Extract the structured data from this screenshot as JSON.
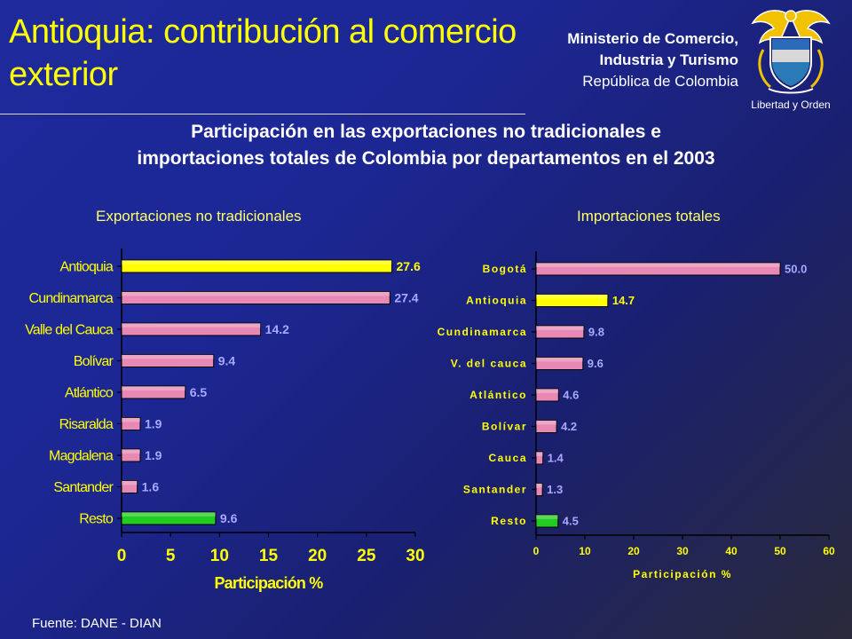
{
  "header": {
    "title": "Antioquia: contribución al comercio exterior",
    "ministry_line1": "Ministerio de Comercio,",
    "ministry_line2": "Industria y Turismo",
    "ministry_line3": "República de Colombia",
    "logo_motto": "Libertad y Orden"
  },
  "headline_line1": "Participación en las exportaciones no tradicionales e",
  "headline_line2": "importaciones totales de Colombia por departamentos en el 2003",
  "source": "Fuente: DANE - DIAN",
  "colors": {
    "highlight": "#ffff00",
    "default_bar": "#e889b5",
    "resto_bar": "#22cc22",
    "label_blue": "#a8a8ff"
  },
  "chart_data": [
    {
      "type": "bar",
      "orientation": "horizontal",
      "title": "Exportaciones no tradicionales",
      "xlabel": "Participación %",
      "ylabel": "",
      "categories": [
        "Antioquia",
        "Cundinamarca",
        "Valle del Cauca",
        "Bolívar",
        "Atlántico",
        "Risaralda",
        "Magdalena",
        "Santander",
        "Resto"
      ],
      "values": [
        27.6,
        27.4,
        14.2,
        9.4,
        6.5,
        1.9,
        1.9,
        1.6,
        9.6
      ],
      "value_labels": [
        "27.6",
        "27.4",
        "14.2",
        "9.4",
        "6.5",
        "1.9",
        "1.9",
        "1.6",
        "9.6"
      ],
      "bar_color_keys": [
        "highlight",
        "default_bar",
        "default_bar",
        "default_bar",
        "default_bar",
        "default_bar",
        "default_bar",
        "default_bar",
        "resto_bar"
      ],
      "xlim": [
        0,
        30
      ],
      "xticks": [
        "0",
        "5",
        "10",
        "15",
        "20",
        "25",
        "30"
      ],
      "grid": false
    },
    {
      "type": "bar",
      "orientation": "horizontal",
      "title": "Importaciones totales",
      "xlabel": "Participación %",
      "ylabel": "",
      "categories": [
        "Bogotá",
        "Antioquia",
        "Cundinamarca",
        "V. del cauca",
        "Atlántico",
        "Bolívar",
        "Cauca",
        "Santander",
        "Resto"
      ],
      "values": [
        50.0,
        14.7,
        9.8,
        9.6,
        4.6,
        4.2,
        1.4,
        1.3,
        4.5
      ],
      "value_labels": [
        "50.0",
        "14.7",
        "9.8",
        "9.6",
        "4.6",
        "4.2",
        "1.4",
        "1.3",
        "4.5"
      ],
      "bar_color_keys": [
        "default_bar",
        "highlight",
        "default_bar",
        "default_bar",
        "default_bar",
        "default_bar",
        "default_bar",
        "default_bar",
        "resto_bar"
      ],
      "xlim": [
        0,
        60
      ],
      "xticks": [
        "0",
        "10",
        "20",
        "30",
        "40",
        "50",
        "60"
      ],
      "grid": false
    }
  ]
}
